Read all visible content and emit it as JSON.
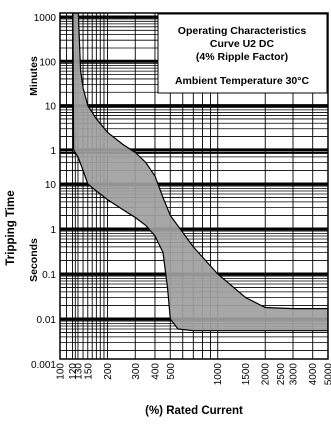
{
  "chart_data": {
    "type": "area",
    "title_lines": [
      "Operating Characteristics",
      "Curve U2 DC",
      "(4% Ripple Factor)"
    ],
    "ambient_note": "Ambient Temperature 30°C",
    "xlabel": "(%) Rated Current",
    "ylabel": "Tripping Time",
    "y_minutes_label": "Minutes",
    "y_seconds_label": "Seconds",
    "x_scale": "log",
    "y_scale": "log",
    "xlim": [
      100,
      5000
    ],
    "x_ticks": [
      100,
      120,
      130,
      150,
      200,
      300,
      400,
      500,
      1000,
      1500,
      2000,
      2500,
      3000,
      4000,
      5000
    ],
    "minutes_ticks": [
      "1000",
      "100",
      "10",
      "1"
    ],
    "seconds_ticks": [
      "10",
      "1",
      "0.1",
      "0.01",
      "0.001"
    ],
    "grid": true,
    "band_color": "#a0a0a0",
    "band": {
      "x_upper": [
        130,
        130,
        135,
        140,
        150,
        170,
        200,
        250,
        300,
        350,
        400,
        450,
        500,
        700,
        1000,
        1500,
        2000,
        3000,
        4000,
        5000
      ],
      "upper_seconds": [
        6000000,
        120000,
        3600,
        1500,
        600,
        300,
        150,
        80,
        50,
        30,
        15,
        5,
        2,
        0.4,
        0.1,
        0.03,
        0.018,
        0.017,
        0.017,
        0.017
      ],
      "x_lower": [
        5000,
        4000,
        3000,
        2000,
        1500,
        1000,
        700,
        560,
        500,
        480,
        450,
        400,
        350,
        300,
        250,
        200,
        170,
        150,
        140,
        130,
        122,
        120
      ],
      "lower_seconds": [
        0.0055,
        0.0055,
        0.0055,
        0.0055,
        0.0055,
        0.0055,
        0.0055,
        0.006,
        0.01,
        0.05,
        0.3,
        0.7,
        1.2,
        1.8,
        2.7,
        4.5,
        7,
        10,
        20,
        40,
        60,
        6000000
      ]
    }
  }
}
